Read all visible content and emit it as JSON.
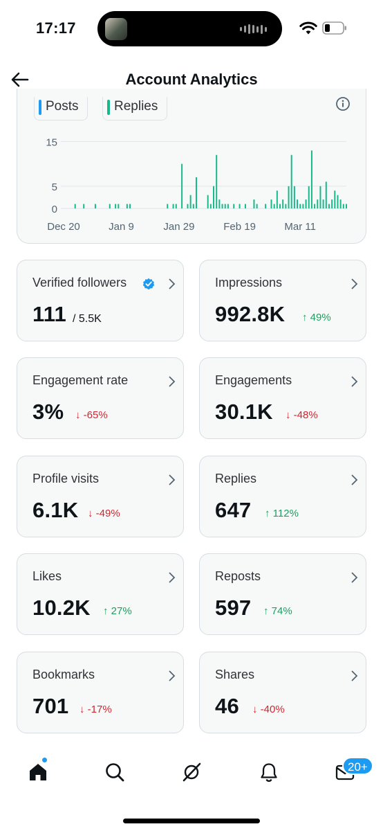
{
  "status_bar": {
    "time": "17:17"
  },
  "header": {
    "title": "Account Analytics"
  },
  "chart_data": {
    "type": "bar",
    "series": [
      {
        "name": "Posts",
        "color": "#1d9bf0",
        "values": []
      },
      {
        "name": "Replies",
        "color": "#17b98a",
        "values": [
          {
            "x": "Dec 24",
            "y": 1
          },
          {
            "x": "Dec 27",
            "y": 1
          },
          {
            "x": "Dec 31",
            "y": 1
          },
          {
            "x": "Jan 5",
            "y": 1
          },
          {
            "x": "Jan 7",
            "y": 1
          },
          {
            "x": "Jan 8",
            "y": 1
          },
          {
            "x": "Jan 11",
            "y": 1
          },
          {
            "x": "Jan 12",
            "y": 1
          },
          {
            "x": "Jan 25",
            "y": 1
          },
          {
            "x": "Jan 27",
            "y": 1
          },
          {
            "x": "Jan 28",
            "y": 1
          },
          {
            "x": "Jan 30",
            "y": 10
          },
          {
            "x": "Feb 1",
            "y": 1
          },
          {
            "x": "Feb 2",
            "y": 3
          },
          {
            "x": "Feb 3",
            "y": 1
          },
          {
            "x": "Feb 4",
            "y": 7
          },
          {
            "x": "Feb 8",
            "y": 3
          },
          {
            "x": "Feb 9",
            "y": 1
          },
          {
            "x": "Feb 10",
            "y": 5
          },
          {
            "x": "Feb 11",
            "y": 12
          },
          {
            "x": "Feb 12",
            "y": 2
          },
          {
            "x": "Feb 13",
            "y": 1
          },
          {
            "x": "Feb 14",
            "y": 1
          },
          {
            "x": "Feb 15",
            "y": 1
          },
          {
            "x": "Feb 17",
            "y": 1
          },
          {
            "x": "Feb 19",
            "y": 1
          },
          {
            "x": "Feb 21",
            "y": 1
          },
          {
            "x": "Feb 24",
            "y": 2
          },
          {
            "x": "Feb 25",
            "y": 1
          },
          {
            "x": "Feb 28",
            "y": 1
          },
          {
            "x": "Mar 1",
            "y": 2
          },
          {
            "x": "Mar 2",
            "y": 1
          },
          {
            "x": "Mar 3",
            "y": 4
          },
          {
            "x": "Mar 4",
            "y": 1
          },
          {
            "x": "Mar 5",
            "y": 2
          },
          {
            "x": "Mar 6",
            "y": 1
          },
          {
            "x": "Mar 7",
            "y": 5
          },
          {
            "x": "Mar 8",
            "y": 12
          },
          {
            "x": "Mar 9",
            "y": 5
          },
          {
            "x": "Mar 10",
            "y": 2
          },
          {
            "x": "Mar 11",
            "y": 1
          },
          {
            "x": "Mar 12",
            "y": 1
          },
          {
            "x": "Mar 13",
            "y": 2
          },
          {
            "x": "Mar 14",
            "y": 5
          },
          {
            "x": "Mar 15",
            "y": 13
          },
          {
            "x": "Mar 16",
            "y": 1
          },
          {
            "x": "Mar 17",
            "y": 2
          },
          {
            "x": "Mar 18",
            "y": 5
          },
          {
            "x": "Mar 19",
            "y": 2
          },
          {
            "x": "Mar 20",
            "y": 6
          },
          {
            "x": "Mar 21",
            "y": 1
          },
          {
            "x": "Mar 22",
            "y": 2
          },
          {
            "x": "Mar 23",
            "y": 4
          },
          {
            "x": "Mar 24",
            "y": 3
          },
          {
            "x": "Mar 25",
            "y": 2
          },
          {
            "x": "Mar 26",
            "y": 1
          },
          {
            "x": "Mar 27",
            "y": 1
          }
        ]
      }
    ],
    "xlabel": "",
    "ylabel": "",
    "xlim": [
      "Dec 20",
      "Mar 27"
    ],
    "ylim": [
      0,
      16
    ],
    "y_ticks": [
      "0",
      "5",
      "15"
    ],
    "x_ticks": [
      "Dec 20",
      "Jan 9",
      "Jan 29",
      "Feb 19",
      "Mar 11"
    ],
    "grid": true,
    "legend": "top-left"
  },
  "cards": [
    {
      "label": "Verified followers",
      "value": "111",
      "total": "/ 5.5K",
      "verified": true
    },
    {
      "label": "Impressions",
      "value": "992.8K",
      "change": "↑ 49%",
      "direction": "up"
    },
    {
      "label": "Engagement rate",
      "value": "3%",
      "change": "↓ -65%",
      "direction": "down"
    },
    {
      "label": "Engagements",
      "value": "30.1K",
      "change": "↓ -48%",
      "direction": "down"
    },
    {
      "label": "Profile visits",
      "value": "6.1K",
      "change": "↓ -49%",
      "direction": "down"
    },
    {
      "label": "Replies",
      "value": "647",
      "change": "↑ 112%",
      "direction": "up"
    },
    {
      "label": "Likes",
      "value": "10.2K",
      "change": "↑ 27%",
      "direction": "up"
    },
    {
      "label": "Reposts",
      "value": "597",
      "change": "↑ 74%",
      "direction": "up"
    },
    {
      "label": "Bookmarks",
      "value": "701",
      "change": "↓ -17%",
      "direction": "down"
    },
    {
      "label": "Shares",
      "value": "46",
      "change": "↓ -40%",
      "direction": "down"
    }
  ],
  "bottom_nav": {
    "items": [
      "home-icon",
      "search-icon",
      "grok-icon",
      "bell-icon",
      "mail-icon"
    ],
    "messages_badge": "20+"
  },
  "colors": {
    "accent": "#1d9bf0",
    "replies": "#17b98a",
    "up": "#1f9d60",
    "down": "#d2242f"
  }
}
